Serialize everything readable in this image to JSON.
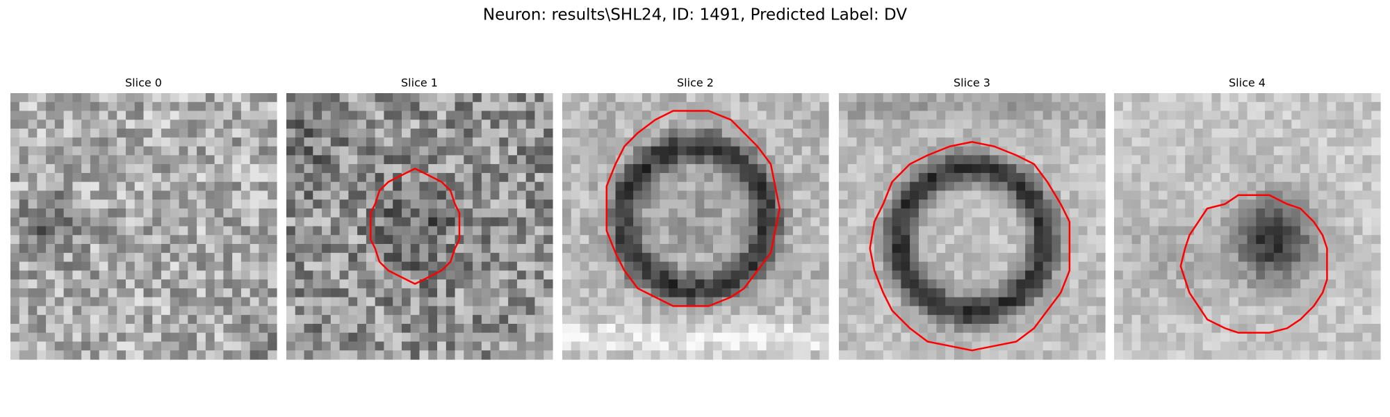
{
  "title": "Neuron: results\\SHL24, ID: 1491, Predicted Label: DV",
  "panels": [
    {
      "title": "Slice 0"
    },
    {
      "title": "Slice 1"
    },
    {
      "title": "Slice 2"
    },
    {
      "title": "Slice 3"
    },
    {
      "title": "Slice 4"
    }
  ]
}
